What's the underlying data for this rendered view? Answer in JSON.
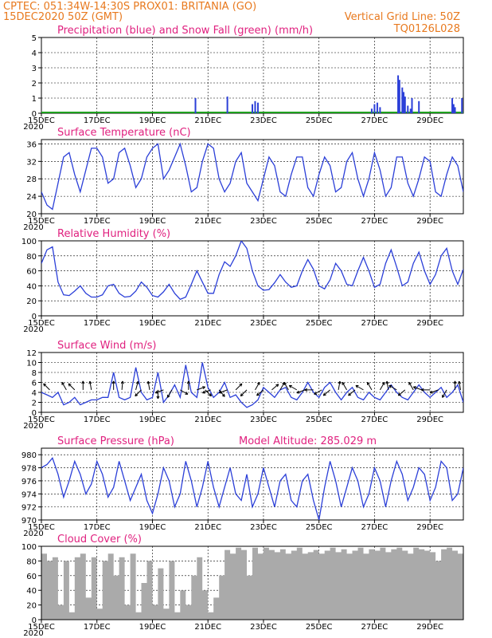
{
  "header": {
    "line1": "CPTEC:  051:34W-14:30S  PROX01: BRITANIA (GO)",
    "line2_left": "15DEC2020 50Z (GMT)",
    "line2_right": "Vertical Grid Line: 50Z",
    "line3_right": "TQ0126L028"
  },
  "x_axis": {
    "ticks": [
      "15DEC",
      "17DEC",
      "19DEC",
      "21DEC",
      "23DEC",
      "25DEC",
      "27DEC",
      "29DEC"
    ],
    "under_first": "2020",
    "range_days": [
      0,
      15.2
    ]
  },
  "colors": {
    "line": "#2b3fd8",
    "snow": "#1ea11e",
    "cloud": "#aaaaaa",
    "title": "#e0217f",
    "header": "#e8791e"
  },
  "chart_data": [
    {
      "type": "bar",
      "title": "Precipitation (blue) and Snow Fall (green) (mm/h)",
      "ylim": [
        0,
        5
      ],
      "yticks": [
        "0",
        "1",
        "2",
        "3",
        "4",
        "5"
      ],
      "series": [
        {
          "name": "Precipitation",
          "points": [
            [
              5.55,
              1.0
            ],
            [
              6.7,
              1.1
            ],
            [
              7.6,
              0.6
            ],
            [
              7.7,
              0.8
            ],
            [
              7.8,
              0.7
            ],
            [
              11.9,
              0.3
            ],
            [
              12.0,
              0.6
            ],
            [
              12.1,
              0.7
            ],
            [
              12.2,
              0.4
            ],
            [
              12.85,
              2.5
            ],
            [
              12.9,
              2.2
            ],
            [
              13.0,
              1.7
            ],
            [
              13.05,
              1.4
            ],
            [
              13.1,
              1.1
            ],
            [
              13.2,
              0.5
            ],
            [
              13.3,
              0.3
            ],
            [
              13.35,
              1.0
            ],
            [
              13.6,
              0.8
            ],
            [
              14.8,
              1.0
            ],
            [
              14.85,
              0.6
            ],
            [
              14.9,
              0.4
            ],
            [
              15.15,
              1.0
            ]
          ]
        },
        {
          "name": "Snow Fall",
          "points": []
        }
      ]
    },
    {
      "type": "line",
      "title": "Surface Temperature (nC)",
      "ylim": [
        20,
        37
      ],
      "yticks": [
        "20",
        "24",
        "28",
        "32",
        "36"
      ],
      "x": [
        0,
        0.2,
        0.4,
        0.6,
        0.8,
        1.0,
        1.2,
        1.4,
        1.6,
        1.8,
        2.0,
        2.2,
        2.4,
        2.6,
        2.8,
        3.0,
        3.2,
        3.4,
        3.6,
        3.8,
        4.0,
        4.2,
        4.4,
        4.6,
        4.8,
        5.0,
        5.2,
        5.4,
        5.6,
        5.8,
        6.0,
        6.2,
        6.4,
        6.6,
        6.8,
        7.0,
        7.2,
        7.4,
        7.6,
        7.8,
        8.0,
        8.2,
        8.4,
        8.6,
        8.8,
        9.0,
        9.2,
        9.4,
        9.6,
        9.8,
        10.0,
        10.2,
        10.4,
        10.6,
        10.8,
        11.0,
        11.2,
        11.4,
        11.6,
        11.8,
        12.0,
        12.2,
        12.4,
        12.6,
        12.8,
        13.0,
        13.2,
        13.4,
        13.6,
        13.8,
        14.0,
        14.2,
        14.4,
        14.6,
        14.8,
        15.0,
        15.2
      ],
      "values": [
        25,
        22,
        21,
        27,
        33,
        34,
        29,
        25,
        30,
        35,
        35,
        33,
        27,
        28,
        34,
        35,
        31,
        26,
        28,
        33,
        35,
        36,
        28,
        30,
        33,
        36,
        31,
        25,
        26,
        32,
        36,
        35,
        28,
        25,
        27,
        32,
        34,
        27,
        25,
        23,
        28,
        33,
        31,
        25,
        24,
        29,
        33,
        33,
        26,
        24,
        29,
        33,
        31,
        25,
        26,
        32,
        34,
        28,
        24,
        28,
        34,
        30,
        24,
        26,
        33,
        33,
        27,
        24,
        28,
        33,
        32,
        25,
        24,
        29,
        33,
        31,
        25
      ]
    },
    {
      "type": "line",
      "title": "Relative Humidity (%)",
      "ylim": [
        0,
        100
      ],
      "yticks": [
        "0",
        "20",
        "40",
        "60",
        "80",
        "100"
      ],
      "x": [
        0,
        0.2,
        0.4,
        0.6,
        0.8,
        1.0,
        1.2,
        1.4,
        1.6,
        1.8,
        2.0,
        2.2,
        2.4,
        2.6,
        2.8,
        3.0,
        3.2,
        3.4,
        3.6,
        3.8,
        4.0,
        4.2,
        4.4,
        4.6,
        4.8,
        5.0,
        5.2,
        5.4,
        5.6,
        5.8,
        6.0,
        6.2,
        6.4,
        6.6,
        6.8,
        7.0,
        7.2,
        7.4,
        7.6,
        7.8,
        8.0,
        8.2,
        8.4,
        8.6,
        8.8,
        9.0,
        9.2,
        9.4,
        9.6,
        9.8,
        10.0,
        10.2,
        10.4,
        10.6,
        10.8,
        11.0,
        11.2,
        11.4,
        11.6,
        11.8,
        12.0,
        12.2,
        12.4,
        12.6,
        12.8,
        13.0,
        13.2,
        13.4,
        13.6,
        13.8,
        14.0,
        14.2,
        14.4,
        14.6,
        14.8,
        15.0,
        15.2
      ],
      "values": [
        70,
        88,
        92,
        45,
        28,
        27,
        33,
        40,
        30,
        25,
        25,
        28,
        40,
        42,
        30,
        25,
        26,
        33,
        45,
        38,
        27,
        25,
        32,
        42,
        30,
        22,
        25,
        42,
        60,
        45,
        30,
        30,
        55,
        72,
        66,
        80,
        100,
        90,
        60,
        40,
        34,
        35,
        44,
        55,
        45,
        38,
        40,
        60,
        75,
        62,
        40,
        36,
        48,
        70,
        60,
        42,
        40,
        60,
        78,
        60,
        38,
        42,
        70,
        88,
        65,
        40,
        45,
        70,
        85,
        60,
        42,
        55,
        80,
        90,
        60,
        42,
        62
      ]
    },
    {
      "type": "line",
      "title": "Surface Wind (m/s)",
      "ylim": [
        0,
        12
      ],
      "yticks": [
        "0",
        "2",
        "4",
        "6",
        "8",
        "10",
        "12"
      ],
      "x": [
        0,
        0.2,
        0.4,
        0.6,
        0.8,
        1.0,
        1.2,
        1.4,
        1.6,
        1.8,
        2.0,
        2.2,
        2.4,
        2.6,
        2.8,
        3.0,
        3.2,
        3.4,
        3.6,
        3.8,
        4.0,
        4.2,
        4.4,
        4.6,
        4.8,
        5.0,
        5.2,
        5.4,
        5.6,
        5.8,
        6.0,
        6.2,
        6.4,
        6.6,
        6.8,
        7.0,
        7.2,
        7.4,
        7.6,
        7.8,
        8.0,
        8.2,
        8.4,
        8.6,
        8.8,
        9.0,
        9.2,
        9.4,
        9.6,
        9.8,
        10.0,
        10.2,
        10.4,
        10.6,
        10.8,
        11.0,
        11.2,
        11.4,
        11.6,
        11.8,
        12.0,
        12.2,
        12.4,
        12.6,
        12.8,
        13.0,
        13.2,
        13.4,
        13.6,
        13.8,
        14.0,
        14.2,
        14.4,
        14.6,
        14.8,
        15.0,
        15.2
      ],
      "values": [
        4,
        3.5,
        3,
        4,
        1.5,
        2,
        3,
        1.5,
        2,
        2.5,
        2.5,
        3,
        3,
        8,
        3,
        2.5,
        3,
        9,
        4,
        2.5,
        3,
        8,
        2,
        3.5,
        5.5,
        3,
        9.5,
        4,
        3,
        10,
        5,
        3,
        4,
        6,
        3,
        3.5,
        2,
        1,
        1.5,
        2.5,
        5,
        4,
        3,
        4.5,
        5,
        3,
        2.5,
        4,
        6,
        4,
        3,
        5,
        6,
        4,
        2.5,
        4,
        5,
        3,
        2.5,
        4,
        3,
        2.5,
        4,
        5.5,
        4,
        3,
        2.5,
        4,
        5.5,
        4,
        3,
        4,
        5,
        3,
        4,
        5.5,
        2
      ]
    },
    {
      "type": "line",
      "title": "Surface Pressure (hPa)",
      "annotation": "Model Altitude: 285.029 m",
      "ylim": [
        970,
        981
      ],
      "yticks": [
        "970",
        "972",
        "974",
        "976",
        "978",
        "980"
      ],
      "x": [
        0,
        0.2,
        0.4,
        0.6,
        0.8,
        1.0,
        1.2,
        1.4,
        1.6,
        1.8,
        2.0,
        2.2,
        2.4,
        2.6,
        2.8,
        3.0,
        3.2,
        3.4,
        3.6,
        3.8,
        4.0,
        4.2,
        4.4,
        4.6,
        4.8,
        5.0,
        5.2,
        5.4,
        5.6,
        5.8,
        6.0,
        6.2,
        6.4,
        6.6,
        6.8,
        7.0,
        7.2,
        7.4,
        7.6,
        7.8,
        8.0,
        8.2,
        8.4,
        8.6,
        8.8,
        9.0,
        9.2,
        9.4,
        9.6,
        9.8,
        10.0,
        10.2,
        10.4,
        10.6,
        10.8,
        11.0,
        11.2,
        11.4,
        11.6,
        11.8,
        12.0,
        12.2,
        12.4,
        12.6,
        12.8,
        13.0,
        13.2,
        13.4,
        13.6,
        13.8,
        14.0,
        14.2,
        14.4,
        14.6,
        14.8,
        15.0,
        15.2
      ],
      "values": [
        978,
        978.5,
        979.5,
        977,
        973.5,
        976,
        979,
        977,
        974,
        975.5,
        979,
        977,
        973.5,
        975,
        979,
        976,
        973,
        975,
        977,
        973,
        971,
        974,
        978,
        976,
        972,
        974,
        979,
        976,
        972,
        975,
        979,
        975,
        972,
        975,
        978,
        974,
        973,
        977,
        972,
        974,
        978,
        975,
        972,
        976,
        977,
        973,
        972,
        976,
        977,
        973,
        970,
        975,
        979,
        976,
        972,
        975,
        978,
        976,
        972,
        974,
        978,
        976,
        972,
        976,
        979,
        977,
        973,
        975,
        978,
        977,
        973,
        975,
        979,
        978,
        973,
        974,
        978
      ]
    },
    {
      "type": "area",
      "title": "Cloud Cover (%)",
      "ylim": [
        0,
        100
      ],
      "yticks": [
        "0",
        "20",
        "40",
        "60",
        "80",
        "100"
      ],
      "x": [
        0,
        0.2,
        0.4,
        0.6,
        0.8,
        1.0,
        1.2,
        1.4,
        1.6,
        1.8,
        2.0,
        2.2,
        2.4,
        2.6,
        2.8,
        3.0,
        3.2,
        3.4,
        3.6,
        3.8,
        4.0,
        4.2,
        4.4,
        4.6,
        4.8,
        5.0,
        5.2,
        5.4,
        5.6,
        5.8,
        6.0,
        6.2,
        6.4,
        6.6,
        6.8,
        7.0,
        7.2,
        7.4,
        7.6,
        7.8,
        8.0,
        8.2,
        8.4,
        8.6,
        8.8,
        9.0,
        9.2,
        9.4,
        9.6,
        9.8,
        10.0,
        10.2,
        10.4,
        10.6,
        10.8,
        11.0,
        11.2,
        11.4,
        11.6,
        11.8,
        12.0,
        12.2,
        12.4,
        12.6,
        12.8,
        13.0,
        13.2,
        13.4,
        13.6,
        13.8,
        14.0,
        14.2,
        14.4,
        14.6,
        14.8,
        15.0,
        15.2
      ],
      "values": [
        90,
        80,
        85,
        20,
        80,
        10,
        85,
        90,
        30,
        85,
        15,
        80,
        90,
        60,
        85,
        20,
        90,
        10,
        50,
        80,
        20,
        70,
        15,
        80,
        10,
        40,
        20,
        60,
        85,
        40,
        10,
        30,
        60,
        95,
        90,
        98,
        95,
        60,
        98,
        90,
        98,
        95,
        92,
        96,
        90,
        94,
        98,
        90,
        92,
        95,
        90,
        94,
        98,
        92,
        96,
        90,
        94,
        98,
        90,
        96,
        94,
        98,
        92,
        96,
        98,
        94,
        90,
        98,
        96,
        94,
        92,
        80,
        96,
        98,
        94,
        90,
        98
      ]
    }
  ],
  "wind_arrows": [
    [
      0.3,
      135
    ],
    [
      0.9,
      120
    ],
    [
      1.2,
      135
    ],
    [
      1.5,
      90
    ],
    [
      1.8,
      100
    ],
    [
      2.6,
      90
    ],
    [
      2.9,
      85
    ],
    [
      3.4,
      75
    ],
    [
      3.6,
      225
    ],
    [
      3.9,
      100
    ],
    [
      4.2,
      270
    ],
    [
      4.4,
      200
    ],
    [
      4.7,
      240
    ],
    [
      5.0,
      330
    ],
    [
      5.3,
      90
    ],
    [
      5.6,
      20
    ],
    [
      5.9,
      315
    ],
    [
      6.1,
      200
    ],
    [
      6.4,
      310
    ],
    [
      6.7,
      200
    ],
    [
      7.0,
      45
    ],
    [
      7.4,
      225
    ],
    [
      7.7,
      60
    ],
    [
      8.0,
      220
    ],
    [
      8.3,
      40
    ],
    [
      8.6,
      60
    ],
    [
      8.9,
      120
    ],
    [
      9.2,
      150
    ],
    [
      9.5,
      200
    ],
    [
      9.8,
      180
    ],
    [
      10.1,
      210
    ],
    [
      10.4,
      220
    ],
    [
      10.7,
      80
    ],
    [
      11.0,
      120
    ],
    [
      11.3,
      220
    ],
    [
      11.6,
      150
    ],
    [
      11.9,
      120
    ],
    [
      12.2,
      60
    ],
    [
      12.5,
      100
    ],
    [
      12.8,
      150
    ],
    [
      13.1,
      220
    ],
    [
      13.4,
      120
    ],
    [
      13.7,
      160
    ],
    [
      14.0,
      180
    ],
    [
      14.3,
      200
    ],
    [
      14.6,
      240
    ],
    [
      14.9,
      90
    ],
    [
      15.1,
      100
    ]
  ]
}
